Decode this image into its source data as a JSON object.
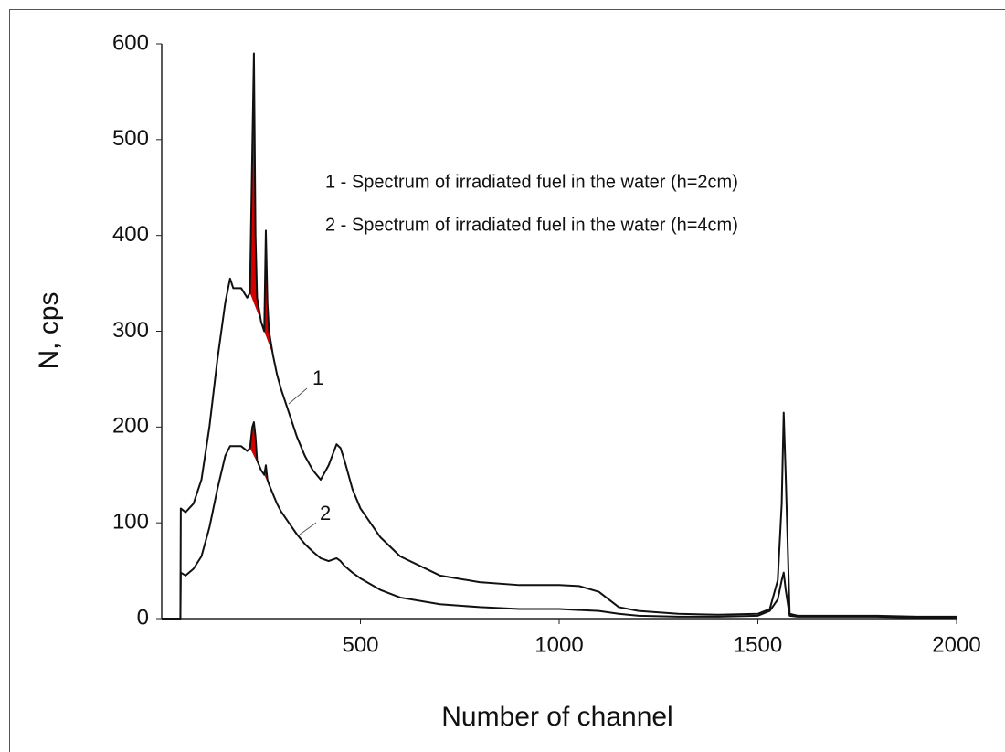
{
  "chart_data": {
    "type": "line",
    "x_label": "Number of channel",
    "y_label": "N, cps",
    "legend_lines": [
      "1 - Spectrum of irradiated fuel in the water (h=2cm)",
      "2 - Spectrum of irradiated fuel in the water (h=4cm)"
    ],
    "annotations": [
      "1",
      "2"
    ],
    "x": [
      0,
      47,
      48,
      60,
      80,
      100,
      120,
      140,
      160,
      172,
      180,
      200,
      215,
      222,
      228,
      232,
      236,
      240,
      250,
      258,
      262,
      266,
      270,
      280,
      290,
      300,
      320,
      340,
      360,
      380,
      400,
      420,
      440,
      450,
      460,
      480,
      500,
      550,
      600,
      700,
      800,
      900,
      1000,
      1050,
      1100,
      1150,
      1200,
      1300,
      1400,
      1500,
      1530,
      1550,
      1560,
      1565,
      1570,
      1580,
      1600,
      1700,
      1800,
      1900,
      2000
    ],
    "series": [
      {
        "name": "1",
        "color": "#111111",
        "values": [
          0,
          0,
          115,
          111,
          120,
          145,
          200,
          270,
          330,
          355,
          345,
          345,
          335,
          340,
          490,
          590,
          400,
          335,
          310,
          300,
          405,
          330,
          300,
          275,
          255,
          240,
          215,
          190,
          170,
          155,
          145,
          160,
          182,
          178,
          165,
          135,
          115,
          85,
          65,
          45,
          38,
          35,
          35,
          34,
          28,
          12,
          8,
          5,
          4,
          5,
          10,
          40,
          120,
          215,
          150,
          5,
          3,
          3,
          3,
          2,
          2
        ]
      },
      {
        "name": "2",
        "color": "#111111",
        "values": [
          0,
          0,
          48,
          45,
          52,
          65,
          95,
          135,
          170,
          180,
          180,
          180,
          175,
          178,
          200,
          205,
          190,
          165,
          155,
          150,
          160,
          145,
          140,
          130,
          120,
          112,
          100,
          88,
          78,
          70,
          63,
          60,
          63,
          60,
          55,
          48,
          42,
          30,
          22,
          15,
          12,
          10,
          10,
          9,
          8,
          5,
          3,
          2,
          2,
          3,
          8,
          20,
          40,
          48,
          30,
          3,
          2,
          2,
          2,
          1,
          1
        ]
      }
    ],
    "peak_fill": {
      "color": "#d40000",
      "ranges": [
        [
          222,
          250
        ],
        [
          258,
          280
        ]
      ]
    },
    "xlim": [
      0,
      2000
    ],
    "xticks": [
      500,
      1000,
      1500,
      2000
    ],
    "ylim": [
      0,
      600
    ],
    "yticks": [
      0,
      100,
      200,
      300,
      400,
      500,
      600
    ]
  }
}
